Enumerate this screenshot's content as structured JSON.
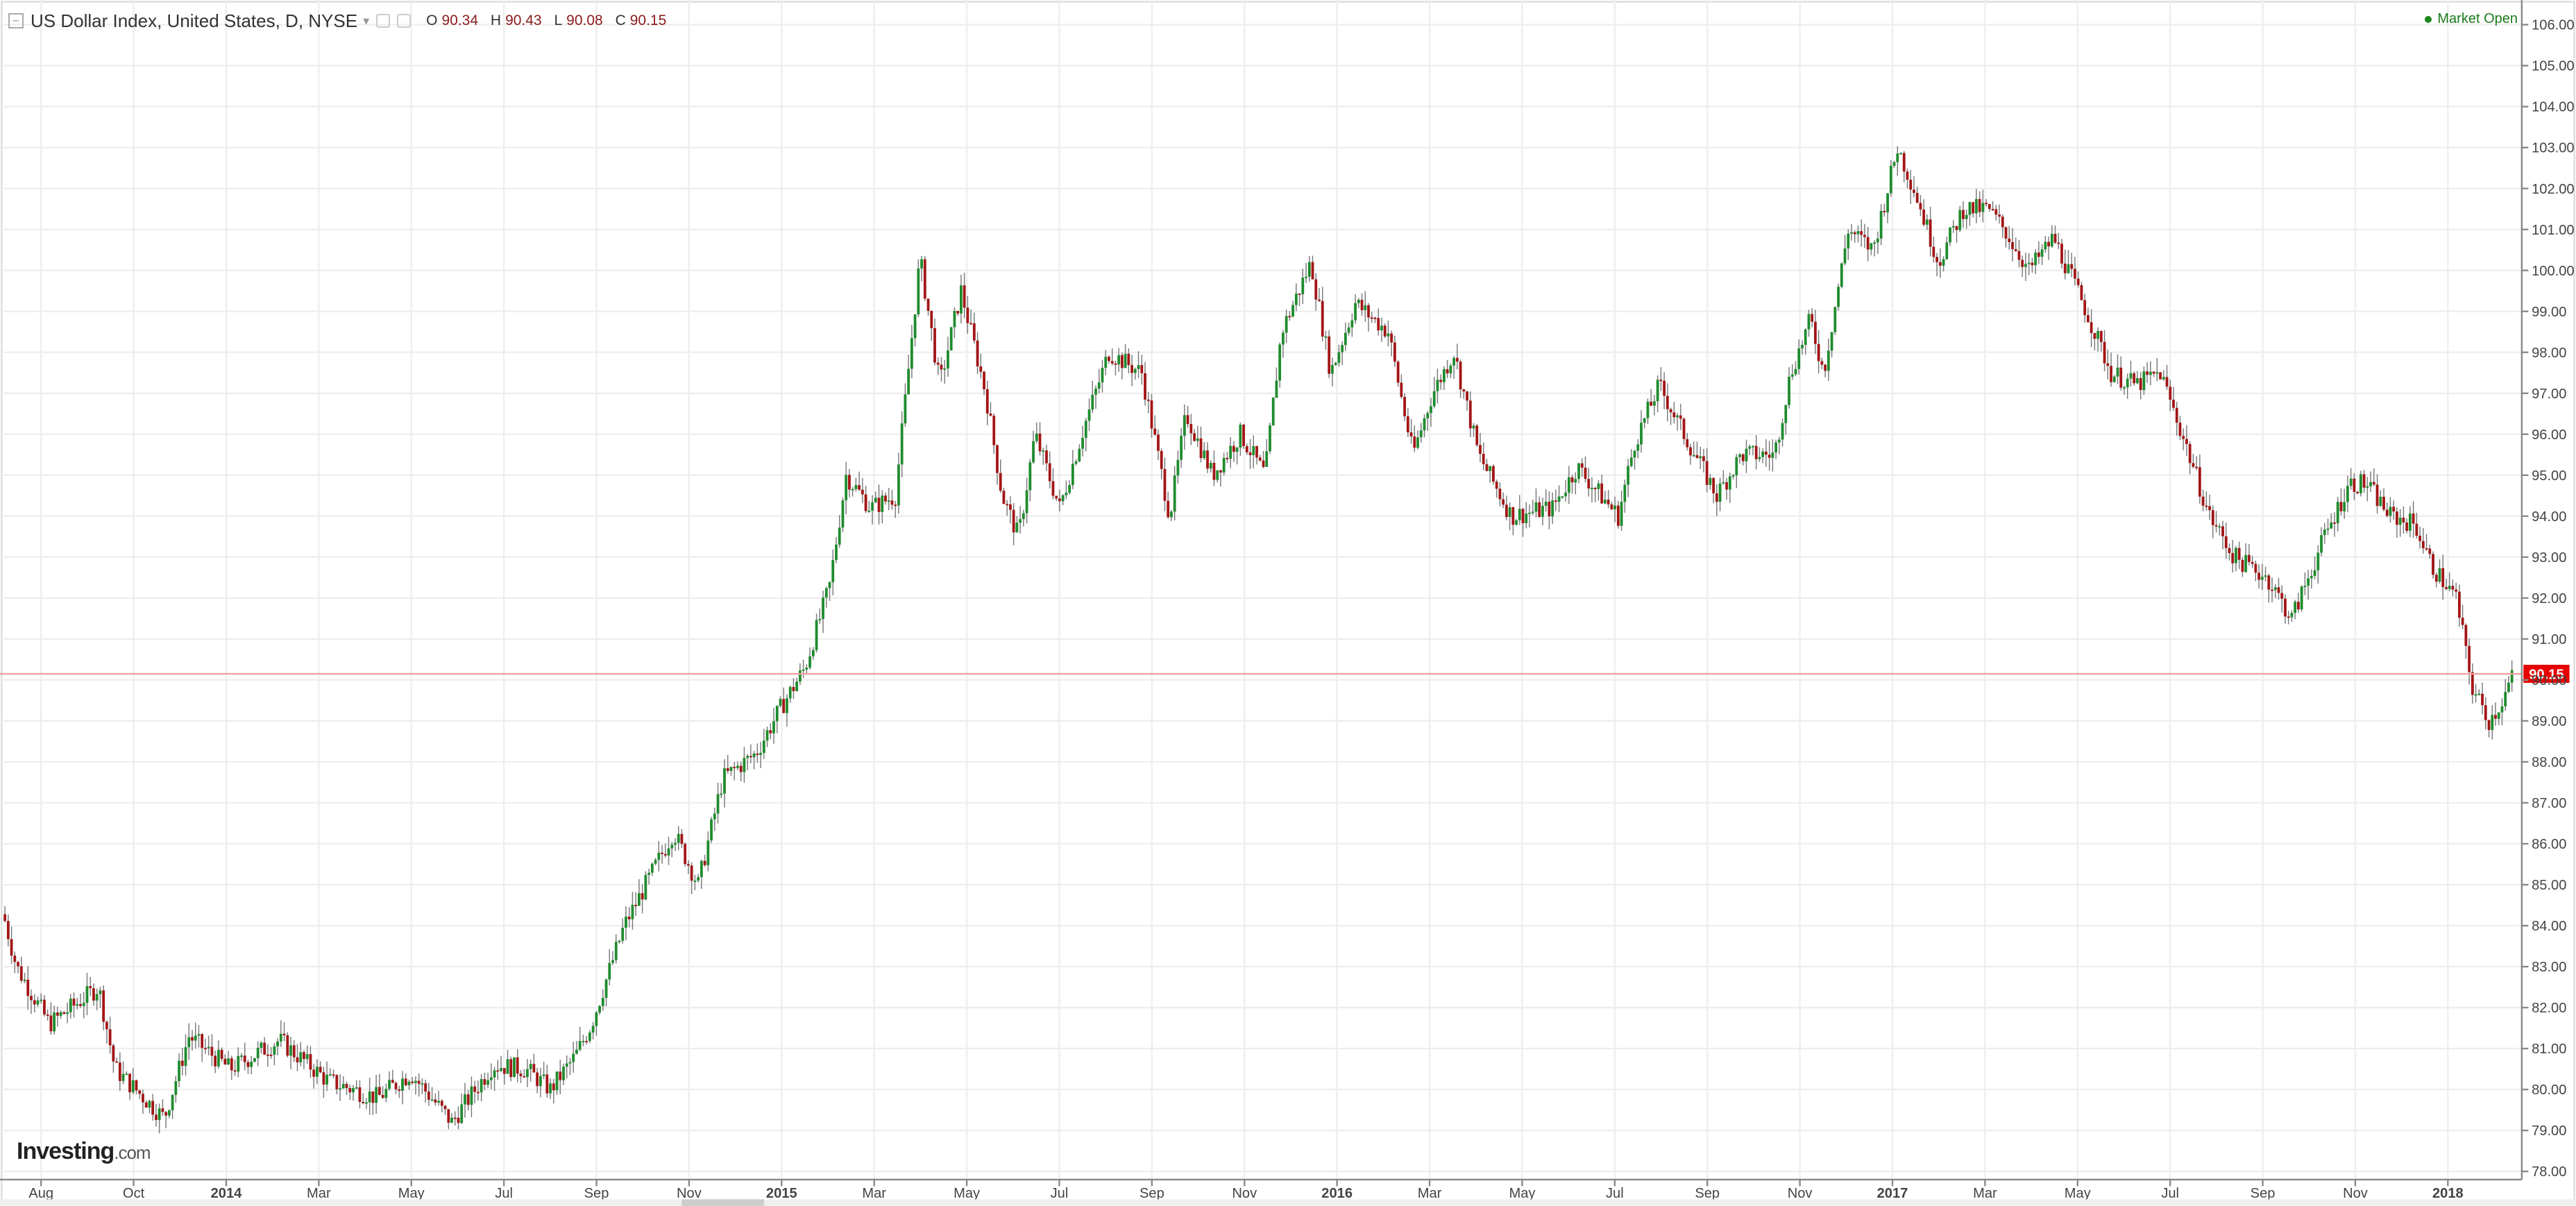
{
  "header": {
    "title": "US Dollar Index, United States, D, NYSE",
    "ohlc": {
      "o_label": "O",
      "o": "90.34",
      "h_label": "H",
      "h": "90.43",
      "l_label": "L",
      "l": "90.08",
      "c_label": "C",
      "c": "90.15"
    },
    "market_status": "Market Open"
  },
  "logo": {
    "brand": "Investing",
    "domain": ".com"
  },
  "colors": {
    "up": "#1e8c2d",
    "down": "#a31515",
    "wick": "#777777",
    "grid": "#eeeeee",
    "last_price_line": "#f2a0a0",
    "last_price_tag": "#e60000",
    "market_open": "#1a8a1a"
  },
  "chart_data": {
    "type": "candlestick",
    "title": "US Dollar Index, United States, D, NYSE",
    "ylim": [
      77.8,
      106.6
    ],
    "y_ticks": [
      "106.00",
      "105.00",
      "104.00",
      "103.00",
      "102.00",
      "101.00",
      "100.00",
      "99.00",
      "98.00",
      "97.00",
      "96.00",
      "95.00",
      "94.00",
      "93.00",
      "92.00",
      "91.00",
      "90.00",
      "89.00",
      "88.00",
      "87.00",
      "86.00",
      "85.00",
      "84.00",
      "83.00",
      "82.00",
      "81.00",
      "80.00",
      "79.00",
      "78.00"
    ],
    "x_ticks": [
      "Aug",
      "Oct",
      "2014",
      "Mar",
      "May",
      "Jul",
      "Sep",
      "Nov",
      "2015",
      "Mar",
      "May",
      "Jul",
      "Sep",
      "Nov",
      "2016",
      "Mar",
      "May",
      "Jul",
      "Sep",
      "Nov",
      "2017",
      "Mar",
      "May",
      "Jul",
      "Sep",
      "Nov",
      "2018"
    ],
    "last_price": 90.15,
    "grid": true,
    "price_path": [
      [
        0,
        84.6
      ],
      [
        10,
        83.0
      ],
      [
        30,
        81.6
      ],
      [
        60,
        82.5
      ],
      [
        70,
        80.5
      ],
      [
        100,
        79.3
      ],
      [
        115,
        81.3
      ],
      [
        140,
        80.5
      ],
      [
        170,
        81.2
      ],
      [
        200,
        80.2
      ],
      [
        230,
        79.8
      ],
      [
        250,
        80.4
      ],
      [
        275,
        79.2
      ],
      [
        300,
        80.6
      ],
      [
        320,
        80.5
      ],
      [
        335,
        80.0
      ],
      [
        350,
        80.8
      ],
      [
        360,
        81.6
      ],
      [
        380,
        84.0
      ],
      [
        410,
        86.3
      ],
      [
        425,
        85.0
      ],
      [
        440,
        87.6
      ],
      [
        460,
        88.2
      ],
      [
        475,
        89.3
      ],
      [
        490,
        90.3
      ],
      [
        505,
        92.3
      ],
      [
        515,
        95.0
      ],
      [
        530,
        94.2
      ],
      [
        545,
        94.5
      ],
      [
        560,
        100.3
      ],
      [
        572,
        97.2
      ],
      [
        585,
        99.5
      ],
      [
        600,
        97.0
      ],
      [
        610,
        94.5
      ],
      [
        620,
        93.5
      ],
      [
        630,
        96.0
      ],
      [
        645,
        94.2
      ],
      [
        660,
        96.2
      ],
      [
        675,
        98.0
      ],
      [
        695,
        97.5
      ],
      [
        712,
        94.0
      ],
      [
        722,
        96.5
      ],
      [
        738,
        95.0
      ],
      [
        755,
        96.0
      ],
      [
        770,
        95.0
      ],
      [
        780,
        98.5
      ],
      [
        798,
        100.2
      ],
      [
        810,
        97.5
      ],
      [
        825,
        99.2
      ],
      [
        845,
        98.5
      ],
      [
        860,
        95.5
      ],
      [
        872,
        97.0
      ],
      [
        885,
        98.0
      ],
      [
        900,
        95.5
      ],
      [
        920,
        94.0
      ],
      [
        945,
        94.2
      ],
      [
        960,
        95.2
      ],
      [
        985,
        94.0
      ],
      [
        995,
        95.8
      ],
      [
        1010,
        97.2
      ],
      [
        1025,
        96.0
      ],
      [
        1045,
        94.5
      ],
      [
        1060,
        95.5
      ],
      [
        1080,
        95.5
      ],
      [
        1090,
        97.5
      ],
      [
        1102,
        98.8
      ],
      [
        1110,
        97.5
      ],
      [
        1125,
        101.0
      ],
      [
        1140,
        100.5
      ],
      [
        1155,
        103.0
      ],
      [
        1165,
        102.0
      ],
      [
        1180,
        100.2
      ],
      [
        1195,
        101.5
      ],
      [
        1210,
        101.5
      ],
      [
        1220,
        101.0
      ],
      [
        1235,
        100.0
      ],
      [
        1250,
        100.8
      ],
      [
        1270,
        99.0
      ],
      [
        1285,
        97.5
      ],
      [
        1300,
        97.2
      ],
      [
        1315,
        97.5
      ],
      [
        1330,
        95.8
      ],
      [
        1345,
        94.0
      ],
      [
        1360,
        93.0
      ],
      [
        1380,
        92.5
      ],
      [
        1395,
        91.5
      ],
      [
        1415,
        93.5
      ],
      [
        1430,
        94.8
      ],
      [
        1440,
        94.8
      ],
      [
        1455,
        94.0
      ],
      [
        1470,
        93.8
      ],
      [
        1480,
        92.8
      ],
      [
        1495,
        92.0
      ],
      [
        1505,
        89.8
      ],
      [
        1515,
        89.0
      ],
      [
        1522,
        89.4
      ],
      [
        1530,
        90.15
      ]
    ]
  }
}
